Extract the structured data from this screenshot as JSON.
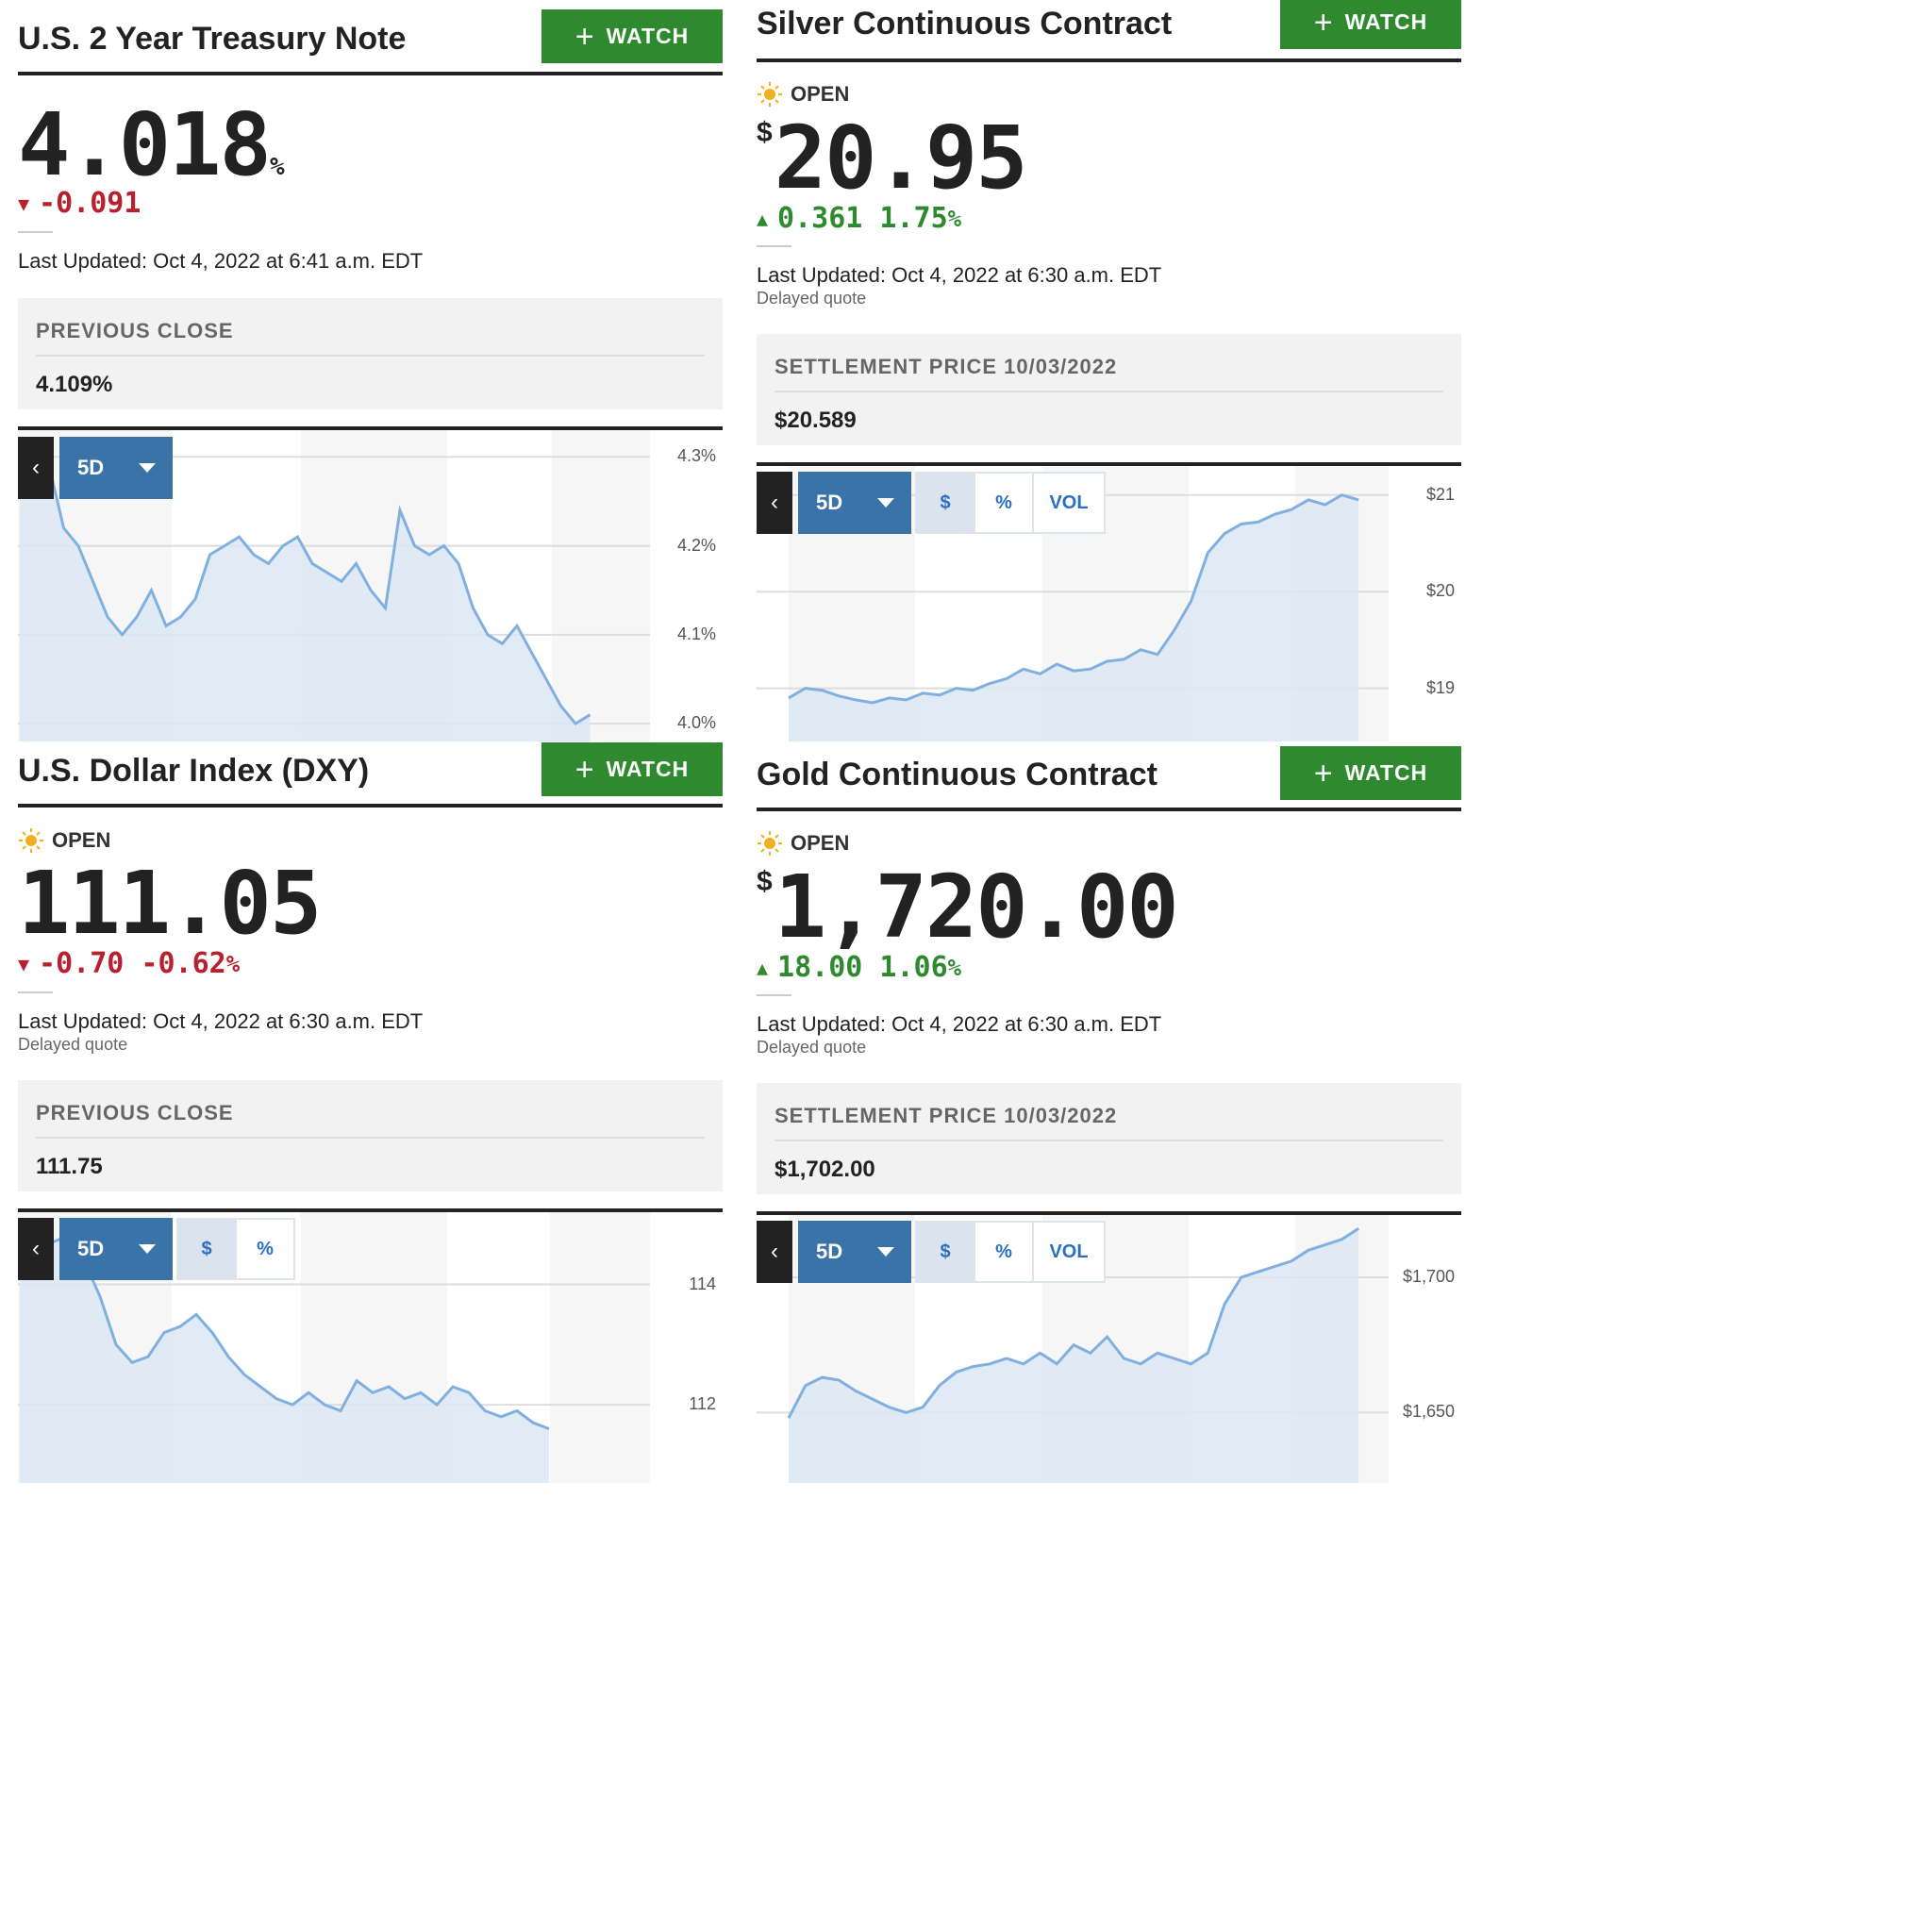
{
  "watch_label": "WATCH",
  "colors": {
    "green": "#2f8a2f",
    "red": "#b8202e",
    "blue": "#3a73a8",
    "line": "#7fb0e0",
    "fill": "#dce8f4"
  },
  "panels": {
    "treasury": {
      "title": "U.S. 2 Year Treasury Note",
      "price": "4.018",
      "unit": "%",
      "change": "-0.091",
      "direction": "down",
      "updated": "Last Updated: Oct 4, 2022 at 6:41 a.m. EDT",
      "stat_label": "PREVIOUS CLOSE",
      "stat_value": "4.109%",
      "range": "5D",
      "back": "‹",
      "y_ticks": [
        "4.3%",
        "4.2%",
        "4.1%",
        "4.0%"
      ]
    },
    "silver": {
      "title": "Silver Continuous Contract",
      "status": "OPEN",
      "currency": "$",
      "price": "20.95",
      "change": "0.361",
      "change_pct": "1.75",
      "pct_sign": "%",
      "direction": "up",
      "updated": "Last Updated: Oct 4, 2022 at 6:30 a.m. EDT",
      "delayed": "Delayed quote",
      "stat_label": "SETTLEMENT PRICE 10/03/2022",
      "stat_value": "$20.589",
      "range": "5D",
      "back": "‹",
      "modes": [
        "$",
        "%",
        "VOL"
      ],
      "y_ticks": [
        "$21",
        "$20",
        "$19"
      ]
    },
    "dxy": {
      "title": "U.S. Dollar Index (DXY)",
      "status": "OPEN",
      "price": "111.05",
      "change": "-0.70",
      "change_pct": "-0.62",
      "pct_sign": "%",
      "direction": "down",
      "updated": "Last Updated: Oct 4, 2022 at 6:30 a.m. EDT",
      "delayed": "Delayed quote",
      "stat_label": "PREVIOUS CLOSE",
      "stat_value": "111.75",
      "range": "5D",
      "back": "‹",
      "modes": [
        "$",
        "%"
      ],
      "y_ticks": [
        "114",
        "112"
      ]
    },
    "gold": {
      "title": "Gold Continuous Contract",
      "status": "OPEN",
      "currency": "$",
      "price": "1,720.00",
      "change": "18.00",
      "change_pct": "1.06",
      "pct_sign": "%",
      "direction": "up",
      "updated": "Last Updated: Oct 4, 2022 at 6:30 a.m. EDT",
      "delayed": "Delayed quote",
      "stat_label": "SETTLEMENT PRICE 10/03/2022",
      "stat_value": "$1,702.00",
      "range": "5D",
      "back": "‹",
      "modes": [
        "$",
        "%",
        "VOL"
      ],
      "y_ticks": [
        "$1,700",
        "$1,650"
      ]
    }
  },
  "chart_data": [
    {
      "type": "area",
      "id": "treasury",
      "ylabel": "",
      "y_ticks": [
        4.3,
        4.2,
        4.1,
        4.0
      ],
      "ylim": [
        3.98,
        4.33
      ],
      "values": [
        4.28,
        4.3,
        4.29,
        4.22,
        4.2,
        4.16,
        4.12,
        4.1,
        4.12,
        4.15,
        4.11,
        4.12,
        4.14,
        4.19,
        4.2,
        4.21,
        4.19,
        4.18,
        4.2,
        4.21,
        4.18,
        4.17,
        4.16,
        4.18,
        4.15,
        4.13,
        4.24,
        4.2,
        4.19,
        4.2,
        4.18,
        4.13,
        4.1,
        4.09,
        4.11,
        4.08,
        4.05,
        4.02,
        4.0,
        4.01
      ]
    },
    {
      "type": "area",
      "id": "silver",
      "ylabel": "",
      "y_ticks": [
        21,
        20,
        19
      ],
      "ylim": [
        18.45,
        21.3
      ],
      "values": [
        18.9,
        19.0,
        18.98,
        18.92,
        18.88,
        18.85,
        18.9,
        18.88,
        18.95,
        18.93,
        19.0,
        18.98,
        19.05,
        19.1,
        19.2,
        19.15,
        19.25,
        19.18,
        19.2,
        19.28,
        19.3,
        19.4,
        19.35,
        19.6,
        19.9,
        20.4,
        20.6,
        20.7,
        20.72,
        20.8,
        20.85,
        20.95,
        20.9,
        21.0,
        20.95
      ]
    },
    {
      "type": "area",
      "id": "dxy",
      "ylabel": "",
      "y_ticks": [
        114,
        112
      ],
      "ylim": [
        110.7,
        115.2
      ],
      "values": [
        114.6,
        114.8,
        114.7,
        114.8,
        114.4,
        113.8,
        113.0,
        112.7,
        112.8,
        113.2,
        113.3,
        113.5,
        113.2,
        112.8,
        112.5,
        112.3,
        112.1,
        112.0,
        112.2,
        112.0,
        111.9,
        112.4,
        112.2,
        112.3,
        112.1,
        112.2,
        112.0,
        112.3,
        112.2,
        111.9,
        111.8,
        111.9,
        111.7,
        111.6
      ]
    },
    {
      "type": "area",
      "id": "gold",
      "ylabel": "",
      "y_ticks": [
        1700,
        1650
      ],
      "ylim": [
        1624,
        1723
      ],
      "values": [
        1648,
        1660,
        1663,
        1662,
        1658,
        1655,
        1652,
        1650,
        1652,
        1660,
        1665,
        1667,
        1668,
        1670,
        1668,
        1672,
        1668,
        1675,
        1672,
        1678,
        1670,
        1668,
        1672,
        1670,
        1668,
        1672,
        1690,
        1700,
        1702,
        1704,
        1706,
        1710,
        1712,
        1714,
        1718
      ]
    }
  ]
}
